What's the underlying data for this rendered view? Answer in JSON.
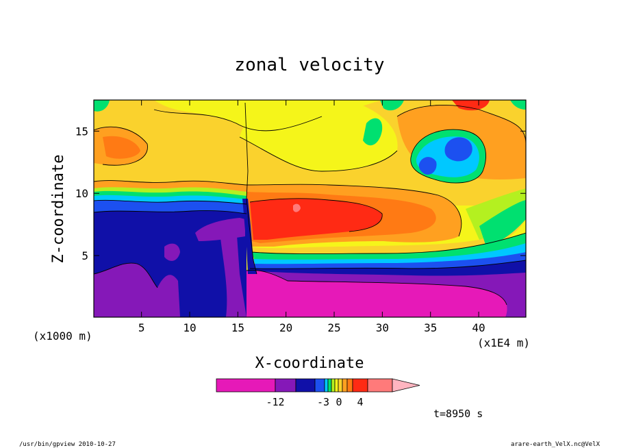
{
  "chart_data": {
    "type": "heatmap",
    "title": "zonal velocity",
    "xlabel": "X-coordinate",
    "ylabel": "Z-coordinate",
    "x_unit_left": "(x1000 m)",
    "x_unit_right": "(x1E4 m)",
    "xlim": [
      0.05,
      44.9
    ],
    "ylim": [
      0.05,
      17.5
    ],
    "x_ticks": [
      5,
      10,
      15,
      20,
      25,
      30,
      35,
      40
    ],
    "y_ticks": [
      5,
      10,
      15
    ],
    "grid": false,
    "colorbar": {
      "colors": [
        "#e619b8",
        "#8518b8",
        "#1010a8",
        "#1c50f0",
        "#00c8ff",
        "#00e070",
        "#b4f020",
        "#f5f51a",
        "#fad22d",
        "#ffa020",
        "#ff7a14",
        "#ff2a14",
        "#ff7a7a",
        "#ffb5c0"
      ],
      "tick_labels": [
        "-12",
        "-3",
        "0",
        "4"
      ]
    },
    "regions": [
      {
        "level": "strong westward (-12 and below)",
        "color": "#e619b8",
        "description": "lower layer east of x=16, z<4"
      },
      {
        "level": "westward",
        "color": "#8518b8",
        "description": "lower layer west of x=16 and near surface east"
      },
      {
        "level": "moderate westward",
        "color": "#1010a8",
        "description": "mid layer z 4-9 west of x=16"
      },
      {
        "level": "near zero to weak",
        "color": "#f5f51a",
        "description": "upper layer z 11-17"
      },
      {
        "level": "eastward jet",
        "color": "#ff2a14",
        "description": "core near x=22-28, z=7-9"
      },
      {
        "level": "westward vortex",
        "color": "#1c50f0",
        "description": "upper right near x=35-37, z=12-14"
      }
    ]
  },
  "footer": {
    "time_label": "t=8950 s",
    "left_note": "/usr/bin/gpview  2010-10-27",
    "right_note": "arare-earth_VelX.nc@VelX"
  }
}
